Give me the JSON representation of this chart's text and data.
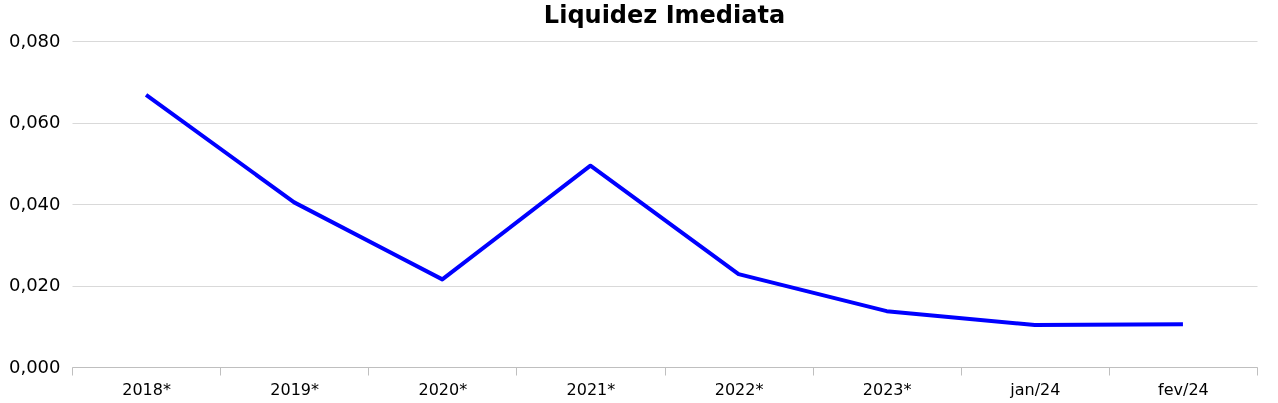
{
  "chart_data": {
    "type": "line",
    "title": "Liquidez Imediata",
    "categories": [
      "2018*",
      "2019*",
      "2020*",
      "2021*",
      "2022*",
      "2023*",
      "jan/24",
      "fev/24"
    ],
    "series": [
      {
        "color": "#0000ff",
        "values": [
          0.0668,
          0.0404,
          0.0215,
          0.0494,
          0.0228,
          0.0137,
          0.0103,
          0.0105
        ]
      }
    ],
    "ylim": [
      0,
      0.08
    ],
    "yticks": [
      {
        "value": 0,
        "label": "0,000"
      },
      {
        "value": 0.02,
        "label": "0,020"
      },
      {
        "value": 0.04,
        "label": "0,040"
      },
      {
        "value": 0.06,
        "label": "0,060"
      },
      {
        "value": 0.08,
        "label": "0,080"
      }
    ],
    "grid": "y",
    "legend": false,
    "marker": "none",
    "line_style": "solid"
  }
}
